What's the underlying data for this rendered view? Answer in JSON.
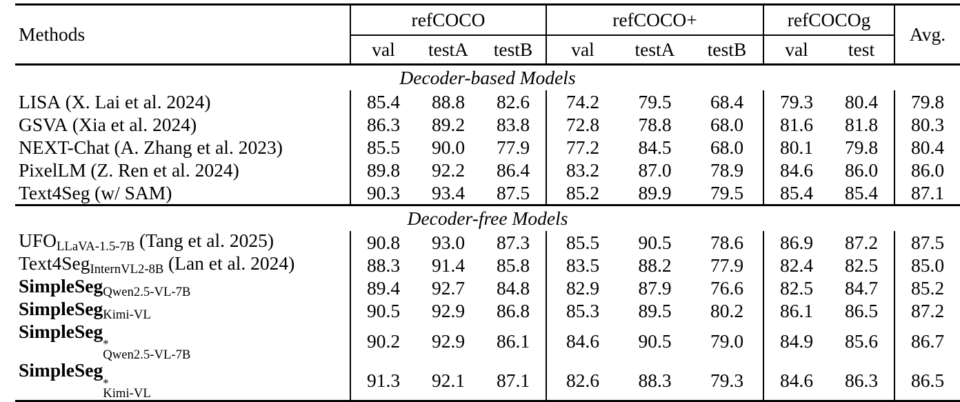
{
  "page": {
    "background": "#ffffff",
    "text_color": "#000000",
    "rule_color": "#000000"
  },
  "table": {
    "header": {
      "methods_label": "Methods",
      "avg_label": "Avg.",
      "groups": [
        {
          "label": "refCOCO",
          "cols": [
            "val",
            "testA",
            "testB"
          ]
        },
        {
          "label": "refCOCO+",
          "cols": [
            "val",
            "testA",
            "testB"
          ]
        },
        {
          "label": "refCOCOg",
          "cols": [
            "val",
            "test"
          ]
        }
      ]
    },
    "sections": [
      {
        "title": "Decoder-based Models",
        "rows": [
          {
            "method": {
              "text": "LISA",
              "bold": false,
              "sup": "",
              "sub": "",
              "cite": "(X. Lai et al. 2024)"
            },
            "values": [
              "85.4",
              "88.8",
              "82.6",
              "74.2",
              "79.5",
              "68.4",
              "79.3",
              "80.4",
              "79.8"
            ]
          },
          {
            "method": {
              "text": "GSVA",
              "bold": false,
              "sup": "",
              "sub": "",
              "cite": "(Xia et al. 2024)"
            },
            "values": [
              "86.3",
              "89.2",
              "83.8",
              "72.8",
              "78.8",
              "68.0",
              "81.6",
              "81.8",
              "80.3"
            ]
          },
          {
            "method": {
              "text": "NEXT-Chat",
              "bold": false,
              "sup": "",
              "sub": "",
              "cite": "(A. Zhang et al. 2023)"
            },
            "values": [
              "85.5",
              "90.0",
              "77.9",
              "77.2",
              "84.5",
              "68.0",
              "80.1",
              "79.8",
              "80.4"
            ]
          },
          {
            "method": {
              "text": "PixelLM",
              "bold": false,
              "sup": "",
              "sub": "",
              "cite": "(Z. Ren et al. 2024)"
            },
            "values": [
              "89.8",
              "92.2",
              "86.4",
              "83.2",
              "87.0",
              "78.9",
              "84.6",
              "86.0",
              "86.0"
            ]
          },
          {
            "method": {
              "text": "Text4Seg",
              "bold": false,
              "sup": "",
              "sub": "",
              "cite": "(w/ SAM)"
            },
            "values": [
              "90.3",
              "93.4",
              "87.5",
              "85.2",
              "89.9",
              "79.5",
              "85.4",
              "85.4",
              "87.1"
            ]
          }
        ]
      },
      {
        "title": "Decoder-free Models",
        "rows": [
          {
            "method": {
              "text": "UFO",
              "bold": false,
              "sup": "",
              "sub": "LLaVA-1.5-7B",
              "cite": "(Tang et al. 2025)"
            },
            "values": [
              "90.8",
              "93.0",
              "87.3",
              "85.5",
              "90.5",
              "78.6",
              "86.9",
              "87.2",
              "87.5"
            ]
          },
          {
            "method": {
              "text": "Text4Seg",
              "bold": false,
              "sup": "",
              "sub": "InternVL2-8B",
              "cite": "(Lan et al. 2024)"
            },
            "values": [
              "88.3",
              "91.4",
              "85.8",
              "83.5",
              "88.2",
              "77.9",
              "82.4",
              "82.5",
              "85.0"
            ]
          },
          {
            "method": {
              "text": "SimpleSeg",
              "bold": true,
              "sup": "",
              "sub": "Qwen2.5-VL-7B",
              "cite": ""
            },
            "values": [
              "89.4",
              "92.7",
              "84.8",
              "82.9",
              "87.9",
              "76.6",
              "82.5",
              "84.7",
              "85.2"
            ]
          },
          {
            "method": {
              "text": "SimpleSeg",
              "bold": true,
              "sup": "",
              "sub": "Kimi-VL",
              "cite": ""
            },
            "values": [
              "90.5",
              "92.9",
              "86.8",
              "85.3",
              "89.5",
              "80.2",
              "86.1",
              "86.5",
              "87.2"
            ]
          },
          {
            "method": {
              "text": "SimpleSeg",
              "bold": true,
              "sup": "*",
              "sub": "Qwen2.5-VL-7B",
              "cite": ""
            },
            "values": [
              "90.2",
              "92.9",
              "86.1",
              "84.6",
              "90.5",
              "79.0",
              "84.9",
              "85.6",
              "86.7"
            ]
          },
          {
            "method": {
              "text": "SimpleSeg",
              "bold": true,
              "sup": "*",
              "sub": "Kimi-VL",
              "cite": ""
            },
            "values": [
              "91.3",
              "92.1",
              "87.1",
              "82.6",
              "88.3",
              "79.3",
              "84.6",
              "86.3",
              "86.5"
            ]
          }
        ]
      }
    ]
  }
}
